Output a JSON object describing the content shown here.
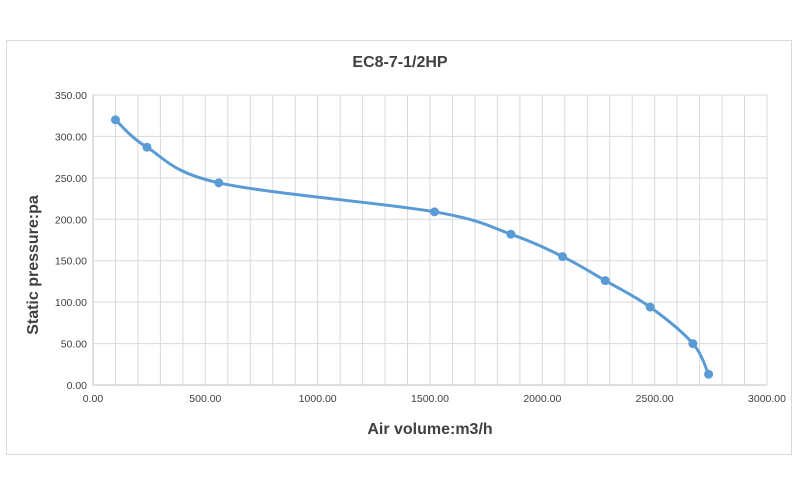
{
  "chart_data": {
    "type": "line",
    "title": "EC8-7-1/2HP",
    "xlabel": "Air volume:m3/h",
    "ylabel": "Static pressure:pa",
    "xlim": [
      0,
      3000
    ],
    "ylim": [
      0,
      350
    ],
    "x_ticks": [
      "0.00",
      "500.00",
      "1000.00",
      "1500.00",
      "2000.00",
      "2500.00",
      "3000.00"
    ],
    "y_ticks": [
      "0.00",
      "50.00",
      "100.00",
      "150.00",
      "200.00",
      "250.00",
      "300.00",
      "350.00"
    ],
    "grid": true,
    "legend": "none",
    "smooth": true,
    "series": [
      {
        "color": "#5b9bd5",
        "x": [
          100,
          240,
          560,
          1520,
          1860,
          2090,
          2280,
          2480,
          2670,
          2740
        ],
        "y": [
          320,
          287,
          244,
          209,
          182,
          155,
          126,
          94,
          50,
          13
        ]
      }
    ]
  }
}
